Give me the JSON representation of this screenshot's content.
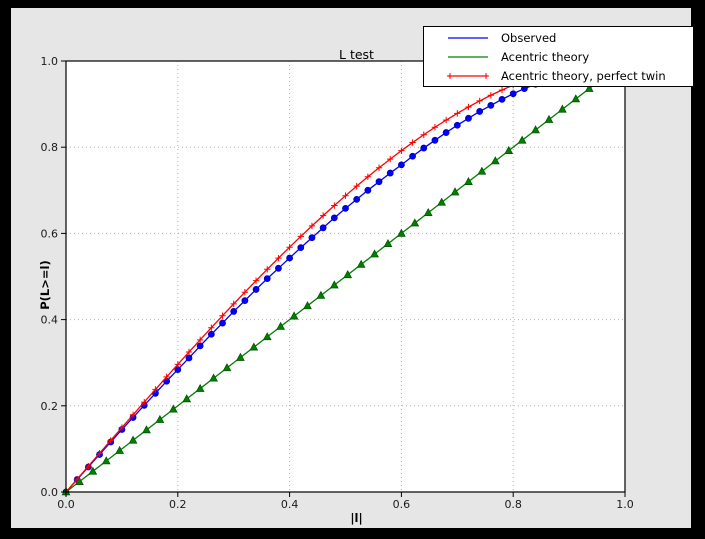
{
  "window": {
    "background": "#000000",
    "figure_background": "#e6e6e6",
    "plot_background": "#ffffff",
    "grid_color": "#b3b3b3",
    "spine_color": "#000000"
  },
  "chart_data": {
    "type": "line",
    "title": "L test",
    "xlabel": "|l|",
    "ylabel": "P(L>=l)",
    "xlim": [
      0.0,
      1.0
    ],
    "ylim": [
      0.0,
      1.0
    ],
    "grid": true,
    "legend_position": "upper right",
    "xticks": {
      "values": [
        0.0,
        0.2,
        0.4,
        0.6,
        0.8,
        1.0
      ],
      "labels": [
        "0.0",
        "0.2",
        "0.4",
        "0.6",
        "0.8",
        "1.0"
      ]
    },
    "yticks": {
      "values": [
        0.0,
        0.2,
        0.4,
        0.6,
        0.8,
        1.0
      ],
      "labels": [
        "0.0",
        "0.2",
        "0.4",
        "0.6",
        "0.8",
        "1.0"
      ]
    },
    "series": [
      {
        "name": "Observed",
        "color": "#0000ff",
        "edge_color": "#0000b3",
        "marker": "circle",
        "legend_marker": "none",
        "x": [
          0.0,
          0.02,
          0.04,
          0.06,
          0.08,
          0.1,
          0.12,
          0.14,
          0.16,
          0.18,
          0.2,
          0.22,
          0.24,
          0.26,
          0.28,
          0.3,
          0.32,
          0.34,
          0.36,
          0.38,
          0.4,
          0.42,
          0.44,
          0.46,
          0.48,
          0.5,
          0.52,
          0.54,
          0.56,
          0.58,
          0.6,
          0.62,
          0.64,
          0.66,
          0.68,
          0.7,
          0.72,
          0.74,
          0.76,
          0.78,
          0.8,
          0.82,
          0.84,
          0.86
        ],
        "y": [
          0.0,
          0.029,
          0.058,
          0.087,
          0.116,
          0.145,
          0.173,
          0.201,
          0.229,
          0.257,
          0.284,
          0.311,
          0.339,
          0.366,
          0.392,
          0.419,
          0.444,
          0.47,
          0.495,
          0.519,
          0.543,
          0.567,
          0.59,
          0.613,
          0.636,
          0.658,
          0.679,
          0.7,
          0.72,
          0.74,
          0.759,
          0.779,
          0.798,
          0.816,
          0.834,
          0.851,
          0.867,
          0.883,
          0.897,
          0.911,
          0.924,
          0.936,
          0.946,
          0.956
        ]
      },
      {
        "name": "Acentric theory",
        "color": "#008000",
        "edge_color": "#005500",
        "marker": "triangle",
        "legend_marker": "none",
        "x": [
          0.0,
          0.024,
          0.048,
          0.072,
          0.096,
          0.12,
          0.144,
          0.168,
          0.192,
          0.216,
          0.24,
          0.264,
          0.288,
          0.312,
          0.336,
          0.36,
          0.384,
          0.408,
          0.432,
          0.456,
          0.48,
          0.504,
          0.528,
          0.552,
          0.576,
          0.6,
          0.624,
          0.648,
          0.672,
          0.696,
          0.72,
          0.744,
          0.768,
          0.792,
          0.816,
          0.84,
          0.864,
          0.888,
          0.912,
          0.936,
          0.96
        ],
        "y": [
          0.0,
          0.024,
          0.048,
          0.072,
          0.096,
          0.12,
          0.144,
          0.168,
          0.192,
          0.216,
          0.24,
          0.264,
          0.288,
          0.312,
          0.336,
          0.36,
          0.384,
          0.408,
          0.432,
          0.456,
          0.48,
          0.504,
          0.528,
          0.552,
          0.576,
          0.6,
          0.624,
          0.648,
          0.672,
          0.696,
          0.72,
          0.744,
          0.768,
          0.792,
          0.816,
          0.84,
          0.864,
          0.888,
          0.912,
          0.936,
          0.96
        ]
      },
      {
        "name": "Acentric theory, perfect twin",
        "color": "#ff0000",
        "edge_color": "#ff0000",
        "marker": "plus",
        "legend_marker": "plus-ends",
        "x": [
          0.0,
          0.02,
          0.04,
          0.06,
          0.08,
          0.1,
          0.12,
          0.14,
          0.16,
          0.18,
          0.2,
          0.22,
          0.24,
          0.26,
          0.28,
          0.3,
          0.32,
          0.34,
          0.36,
          0.38,
          0.4,
          0.42,
          0.44,
          0.46,
          0.48,
          0.5,
          0.52,
          0.54,
          0.56,
          0.58,
          0.6,
          0.62,
          0.64,
          0.66,
          0.68,
          0.7,
          0.72,
          0.74,
          0.76,
          0.78,
          0.8,
          0.82,
          0.84,
          0.86
        ],
        "y": [
          0.0,
          0.03,
          0.06,
          0.0899,
          0.1197,
          0.1495,
          0.1791,
          0.2086,
          0.238,
          0.2671,
          0.296,
          0.3247,
          0.3531,
          0.3812,
          0.409,
          0.4365,
          0.4636,
          0.4903,
          0.5167,
          0.5426,
          0.568,
          0.593,
          0.6174,
          0.6413,
          0.6647,
          0.6875,
          0.7097,
          0.7313,
          0.7522,
          0.7724,
          0.792,
          0.8108,
          0.8289,
          0.8463,
          0.8628,
          0.8785,
          0.8934,
          0.9074,
          0.9205,
          0.9327,
          0.944,
          0.9543,
          0.9636,
          0.972
        ]
      }
    ]
  }
}
